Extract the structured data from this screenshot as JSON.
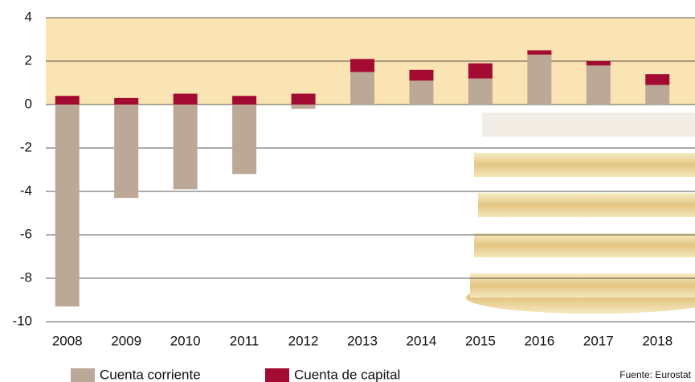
{
  "chart_data": {
    "type": "bar",
    "stacked": true,
    "categories": [
      "2008",
      "2009",
      "2010",
      "2011",
      "2012",
      "2013",
      "2014",
      "2015",
      "2016",
      "2017",
      "2018"
    ],
    "series": [
      {
        "name": "Cuenta corriente",
        "color": "#bba897",
        "values": [
          -9.3,
          -4.3,
          -3.9,
          -3.2,
          -0.2,
          1.5,
          1.1,
          1.2,
          2.3,
          1.8,
          0.9
        ]
      },
      {
        "name": "Cuenta de capital",
        "color": "#a30b33",
        "values": [
          0.4,
          0.3,
          0.5,
          0.4,
          0.5,
          0.6,
          0.5,
          0.7,
          0.2,
          0.2,
          0.5
        ]
      }
    ],
    "ylim": [
      -10,
      4
    ],
    "yticks": [
      -10,
      -8,
      -6,
      -4,
      -2,
      0,
      2,
      4
    ],
    "shaded_range": [
      0,
      4
    ],
    "shaded_color": "#fbe4b4",
    "grid": true,
    "source": "Fuente: Eurostat"
  }
}
